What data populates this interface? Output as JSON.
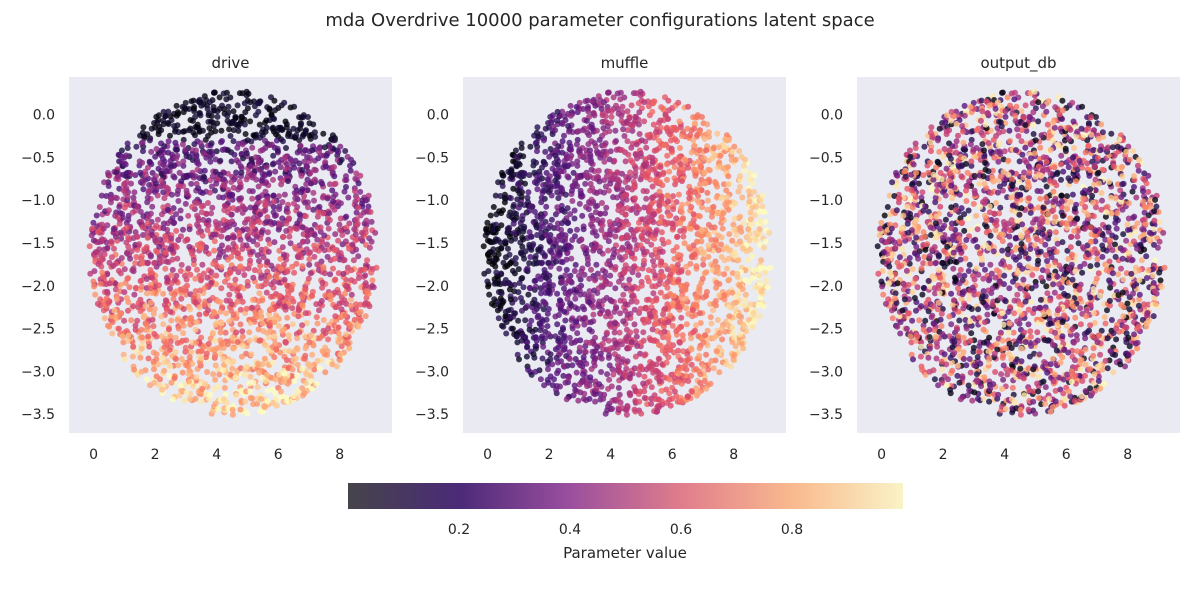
{
  "chart_data": {
    "type": "scatter",
    "title": "mda Overdrive 10000 parameter configurations latent space",
    "n_points": 10000,
    "colormap": "magma",
    "x_ticks": [
      "0",
      "2",
      "4",
      "6",
      "8"
    ],
    "y_ticks": [
      "0.0",
      "−0.5",
      "−1.0",
      "−1.5",
      "−2.0",
      "−2.5",
      "−3.0",
      "−3.5"
    ],
    "xlim": [
      -0.8,
      9.7
    ],
    "ylim": [
      -3.72,
      0.44
    ],
    "panels": [
      {
        "title": "drive",
        "gradient": "vertical"
      },
      {
        "title": "muffle",
        "gradient": "horizontal"
      },
      {
        "title": "output_db",
        "gradient": "random"
      }
    ],
    "colorbar": {
      "label": "Parameter value",
      "ticks": [
        "0.2",
        "0.4",
        "0.6",
        "0.8"
      ],
      "range": [
        0,
        1
      ]
    },
    "colors": {
      "panel_bg": "#eaeaf2",
      "magma": [
        "#000004",
        "#3b0f70",
        "#8c2981",
        "#de4968",
        "#fe9f6d",
        "#fcfdbf"
      ]
    }
  }
}
